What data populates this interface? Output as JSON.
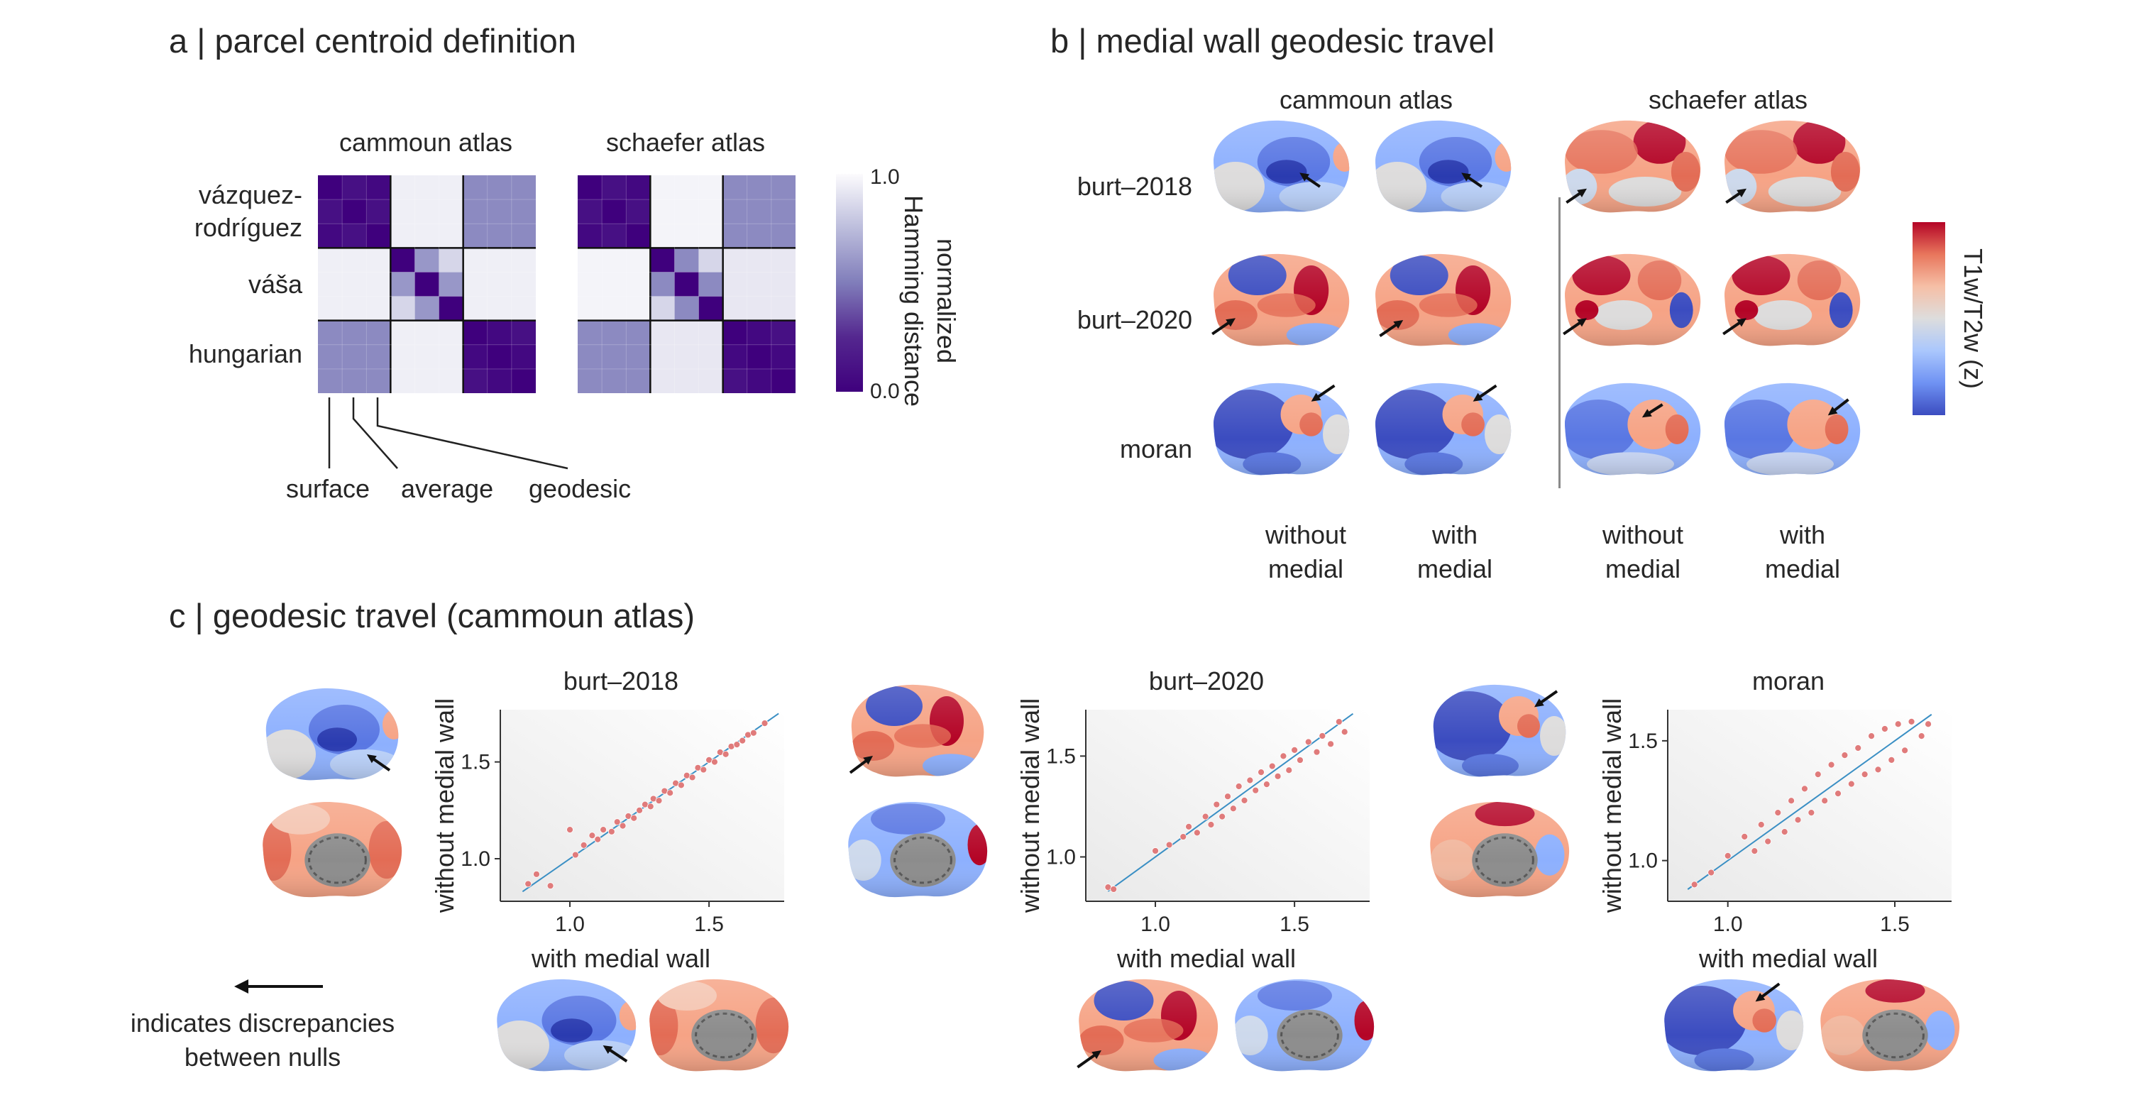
{
  "panel_a": {
    "heading": "a | parcel centroid definition",
    "atlases": [
      "cammoun atlas",
      "schaefer atlas"
    ],
    "rows": [
      "vázquez-\nrodríguez",
      "váša",
      "hungarian"
    ],
    "columns": [
      "surface",
      "average",
      "geodesic"
    ],
    "colorbar": {
      "label": "normalized\nHamming distance",
      "max": "1.0",
      "min": "0.0"
    },
    "matrix_cammoun": [
      [
        0.0,
        0.1,
        0.05,
        0.95,
        0.95,
        0.95,
        0.55,
        0.55,
        0.55
      ],
      [
        0.1,
        0.0,
        0.1,
        0.95,
        0.95,
        0.95,
        0.55,
        0.55,
        0.55
      ],
      [
        0.05,
        0.1,
        0.0,
        0.95,
        0.95,
        0.95,
        0.55,
        0.55,
        0.55
      ],
      [
        0.95,
        0.95,
        0.95,
        0.0,
        0.6,
        0.85,
        0.95,
        0.95,
        0.95
      ],
      [
        0.95,
        0.95,
        0.95,
        0.6,
        0.0,
        0.6,
        0.95,
        0.95,
        0.95
      ],
      [
        0.95,
        0.95,
        0.95,
        0.85,
        0.6,
        0.0,
        0.95,
        0.95,
        0.95
      ],
      [
        0.55,
        0.55,
        0.55,
        0.95,
        0.95,
        0.95,
        0.0,
        0.05,
        0.1
      ],
      [
        0.55,
        0.55,
        0.55,
        0.95,
        0.95,
        0.95,
        0.05,
        0.0,
        0.05
      ],
      [
        0.55,
        0.55,
        0.55,
        0.95,
        0.95,
        0.95,
        0.1,
        0.05,
        0.0
      ]
    ],
    "matrix_schaefer": [
      [
        0.0,
        0.1,
        0.05,
        0.97,
        0.97,
        0.97,
        0.55,
        0.55,
        0.55
      ],
      [
        0.1,
        0.0,
        0.1,
        0.97,
        0.97,
        0.97,
        0.55,
        0.55,
        0.55
      ],
      [
        0.05,
        0.1,
        0.0,
        0.97,
        0.97,
        0.97,
        0.55,
        0.55,
        0.55
      ],
      [
        0.97,
        0.97,
        0.97,
        0.0,
        0.55,
        0.85,
        0.92,
        0.92,
        0.92
      ],
      [
        0.97,
        0.97,
        0.97,
        0.55,
        0.0,
        0.55,
        0.92,
        0.92,
        0.92
      ],
      [
        0.97,
        0.97,
        0.97,
        0.85,
        0.55,
        0.0,
        0.92,
        0.92,
        0.92
      ],
      [
        0.55,
        0.55,
        0.55,
        0.92,
        0.92,
        0.92,
        0.0,
        0.05,
        0.1
      ],
      [
        0.55,
        0.55,
        0.55,
        0.92,
        0.92,
        0.92,
        0.05,
        0.0,
        0.05
      ],
      [
        0.55,
        0.55,
        0.55,
        0.92,
        0.92,
        0.92,
        0.1,
        0.05,
        0.0
      ]
    ]
  },
  "panel_b": {
    "heading": "b | medial wall geodesic travel",
    "atlases": [
      "cammoun atlas",
      "schaefer atlas"
    ],
    "rows": [
      "burt–2018",
      "burt–2020",
      "moran"
    ],
    "col_line1": [
      "without",
      "with",
      "without",
      "with"
    ],
    "col_line2": [
      "medial",
      "medial",
      "medial",
      "medial"
    ],
    "colorbar_label": "T1w/T2w (z)"
  },
  "panel_c": {
    "heading": "c | geodesic travel (cammoun atlas)",
    "legend_text": "indicates discrepancies\nbetween nulls"
  },
  "chart_data": [
    {
      "type": "scatter",
      "title": "burt–2018",
      "xlabel": "with medial wall",
      "ylabel": "without medial wall",
      "xticks": [
        "1.0",
        "1.5"
      ],
      "yticks": [
        "1.0",
        "1.5"
      ],
      "xlim": [
        0.75,
        1.77
      ],
      "ylim": [
        0.78,
        1.77
      ],
      "x": [
        0.85,
        0.88,
        0.93,
        1.0,
        1.02,
        1.05,
        1.08,
        1.1,
        1.12,
        1.15,
        1.17,
        1.19,
        1.21,
        1.23,
        1.25,
        1.27,
        1.29,
        1.3,
        1.32,
        1.34,
        1.36,
        1.38,
        1.4,
        1.42,
        1.44,
        1.46,
        1.48,
        1.5,
        1.52,
        1.54,
        1.56,
        1.58,
        1.6,
        1.62,
        1.64,
        1.66,
        1.7
      ],
      "y": [
        0.87,
        0.92,
        0.86,
        1.15,
        1.02,
        1.07,
        1.12,
        1.1,
        1.15,
        1.14,
        1.19,
        1.17,
        1.22,
        1.21,
        1.25,
        1.28,
        1.27,
        1.31,
        1.3,
        1.35,
        1.34,
        1.39,
        1.38,
        1.43,
        1.42,
        1.47,
        1.46,
        1.51,
        1.5,
        1.55,
        1.54,
        1.58,
        1.59,
        1.61,
        1.64,
        1.65,
        1.7
      ]
    },
    {
      "type": "scatter",
      "title": "burt–2020",
      "xlabel": "with medial wall",
      "ylabel": "without medial wall",
      "xticks": [
        "1.0",
        "1.5"
      ],
      "yticks": [
        "1.0",
        "1.5"
      ],
      "xlim": [
        0.75,
        1.77
      ],
      "ylim": [
        0.78,
        1.73
      ],
      "x": [
        0.83,
        0.85,
        1.0,
        1.05,
        1.1,
        1.12,
        1.15,
        1.18,
        1.2,
        1.22,
        1.24,
        1.26,
        1.28,
        1.3,
        1.32,
        1.34,
        1.36,
        1.38,
        1.4,
        1.42,
        1.44,
        1.46,
        1.48,
        1.5,
        1.52,
        1.55,
        1.58,
        1.6,
        1.63,
        1.66,
        1.68
      ],
      "y": [
        0.85,
        0.84,
        1.03,
        1.06,
        1.1,
        1.15,
        1.12,
        1.2,
        1.16,
        1.26,
        1.2,
        1.3,
        1.24,
        1.35,
        1.28,
        1.38,
        1.33,
        1.42,
        1.36,
        1.45,
        1.4,
        1.5,
        1.43,
        1.53,
        1.48,
        1.57,
        1.52,
        1.6,
        1.56,
        1.67,
        1.62
      ]
    },
    {
      "type": "scatter",
      "title": "moran",
      "xlabel": "with medial wall",
      "ylabel": "without medial wall",
      "xticks": [
        "1.0",
        "1.5"
      ],
      "yticks": [
        "1.0",
        "1.5"
      ],
      "xlim": [
        0.82,
        1.67
      ],
      "ylim": [
        0.83,
        1.63
      ],
      "x": [
        0.9,
        0.95,
        1.0,
        1.05,
        1.08,
        1.1,
        1.12,
        1.15,
        1.17,
        1.19,
        1.21,
        1.23,
        1.25,
        1.27,
        1.29,
        1.31,
        1.33,
        1.35,
        1.37,
        1.39,
        1.41,
        1.43,
        1.45,
        1.47,
        1.49,
        1.51,
        1.53,
        1.55,
        1.58,
        1.6
      ],
      "y": [
        0.9,
        0.95,
        1.02,
        1.1,
        1.04,
        1.15,
        1.08,
        1.2,
        1.12,
        1.25,
        1.17,
        1.3,
        1.2,
        1.36,
        1.25,
        1.4,
        1.28,
        1.44,
        1.32,
        1.47,
        1.36,
        1.52,
        1.38,
        1.55,
        1.42,
        1.57,
        1.46,
        1.58,
        1.52,
        1.57
      ]
    }
  ],
  "colors": {
    "matrix_low": "#3f007d",
    "matrix_high": "#fcfbfd",
    "scatter_point": "#e07b7b",
    "fit_line": "#3a8fc4",
    "brain_blue": "#3b4cc0",
    "brain_red": "#b40426"
  }
}
